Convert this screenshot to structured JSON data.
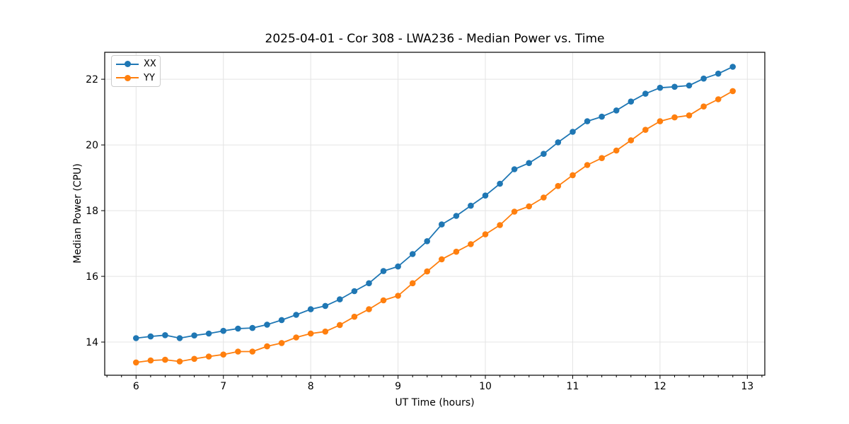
{
  "chart_data": {
    "type": "line",
    "title": "2025-04-01 - Cor 308 - LWA236 - Median Power vs. Time",
    "xlabel": "UT Time (hours)",
    "ylabel": "Median Power (CPU)",
    "x": [
      6.0,
      6.167,
      6.333,
      6.5,
      6.667,
      6.833,
      7.0,
      7.167,
      7.333,
      7.5,
      7.667,
      7.833,
      8.0,
      8.167,
      8.333,
      8.5,
      8.667,
      8.833,
      9.0,
      9.167,
      9.333,
      9.5,
      9.667,
      9.833,
      10.0,
      10.167,
      10.333,
      10.5,
      10.667,
      10.833,
      11.0,
      11.167,
      11.333,
      11.5,
      11.667,
      11.833,
      12.0,
      12.167,
      12.333,
      12.5,
      12.667,
      12.833
    ],
    "series": [
      {
        "name": "XX",
        "color": "#1f77b4",
        "values": [
          14.12,
          14.17,
          14.21,
          14.12,
          14.2,
          14.26,
          14.34,
          14.41,
          14.43,
          14.53,
          14.67,
          14.83,
          15.0,
          15.1,
          15.3,
          15.55,
          15.79,
          16.16,
          16.3,
          16.68,
          17.07,
          17.58,
          17.84,
          18.15,
          18.46,
          18.82,
          19.26,
          19.45,
          19.73,
          20.08,
          20.4,
          20.72,
          20.86,
          21.05,
          21.32,
          21.56,
          21.74,
          21.77,
          21.81,
          22.02,
          22.17,
          22.38
        ]
      },
      {
        "name": "YY",
        "color": "#ff7f0e",
        "values": [
          13.38,
          13.44,
          13.46,
          13.41,
          13.49,
          13.56,
          13.62,
          13.71,
          13.71,
          13.87,
          13.97,
          14.14,
          14.26,
          14.32,
          14.52,
          14.77,
          15.0,
          15.27,
          15.41,
          15.79,
          16.15,
          16.52,
          16.75,
          16.98,
          17.28,
          17.56,
          17.97,
          18.13,
          18.4,
          18.75,
          19.08,
          19.39,
          19.6,
          19.83,
          20.14,
          20.46,
          20.72,
          20.84,
          20.9,
          21.17,
          21.39,
          21.64
        ]
      }
    ],
    "xlim": [
      5.641,
      13.2
    ],
    "ylim": [
      12.99,
      22.82
    ],
    "x_ticks": [
      6,
      7,
      8,
      9,
      10,
      11,
      12,
      13
    ],
    "y_ticks": [
      14,
      16,
      18,
      20,
      22
    ],
    "x_minor_step": 0.16667,
    "grid": true,
    "grid_color": "#e4e4e4",
    "spine_color": "#000000",
    "legend_position": "upper left",
    "marker": "circle"
  }
}
